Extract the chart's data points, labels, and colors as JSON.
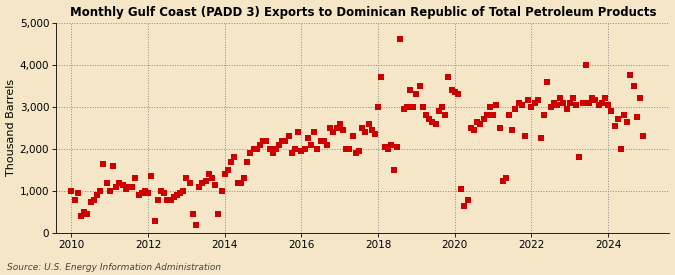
{
  "title": "Monthly Gulf Coast (PADD 3) Exports to Dominican Republic of Total Petroleum Products",
  "ylabel": "Thousand Barrels",
  "source": "Source: U.S. Energy Information Administration",
  "background_color": "#f5e6c8",
  "plot_bg_color": "#f5e6c8",
  "marker_color": "#cc0000",
  "marker": "s",
  "marker_size": 4,
  "ylim": [
    0,
    5000
  ],
  "yticks": [
    0,
    1000,
    2000,
    3000,
    4000,
    5000
  ],
  "ytick_labels": [
    "0",
    "1,000",
    "2,000",
    "3,000",
    "4,000",
    "5,000"
  ],
  "xlim_start": 2009.6,
  "xlim_end": 2025.6,
  "xticks": [
    2010,
    2012,
    2014,
    2016,
    2018,
    2020,
    2022,
    2024
  ],
  "data": [
    [
      2010.0,
      1000
    ],
    [
      2010.083,
      800
    ],
    [
      2010.167,
      950
    ],
    [
      2010.25,
      420
    ],
    [
      2010.333,
      500
    ],
    [
      2010.417,
      450
    ],
    [
      2010.5,
      750
    ],
    [
      2010.583,
      800
    ],
    [
      2010.667,
      900
    ],
    [
      2010.75,
      1000
    ],
    [
      2010.833,
      1650
    ],
    [
      2010.917,
      1200
    ],
    [
      2011.0,
      1000
    ],
    [
      2011.083,
      1600
    ],
    [
      2011.167,
      1100
    ],
    [
      2011.25,
      1200
    ],
    [
      2011.333,
      1150
    ],
    [
      2011.417,
      1050
    ],
    [
      2011.5,
      1100
    ],
    [
      2011.583,
      1100
    ],
    [
      2011.667,
      1300
    ],
    [
      2011.75,
      900
    ],
    [
      2011.833,
      950
    ],
    [
      2011.917,
      1000
    ],
    [
      2012.0,
      950
    ],
    [
      2012.083,
      1350
    ],
    [
      2012.167,
      300
    ],
    [
      2012.25,
      800
    ],
    [
      2012.333,
      1000
    ],
    [
      2012.417,
      950
    ],
    [
      2012.5,
      800
    ],
    [
      2012.583,
      800
    ],
    [
      2012.667,
      850
    ],
    [
      2012.75,
      900
    ],
    [
      2012.833,
      950
    ],
    [
      2012.917,
      1000
    ],
    [
      2013.0,
      1300
    ],
    [
      2013.083,
      1200
    ],
    [
      2013.167,
      450
    ],
    [
      2013.25,
      200
    ],
    [
      2013.333,
      1100
    ],
    [
      2013.417,
      1200
    ],
    [
      2013.5,
      1250
    ],
    [
      2013.583,
      1400
    ],
    [
      2013.667,
      1300
    ],
    [
      2013.75,
      1150
    ],
    [
      2013.833,
      450
    ],
    [
      2013.917,
      1000
    ],
    [
      2014.0,
      1400
    ],
    [
      2014.083,
      1500
    ],
    [
      2014.167,
      1700
    ],
    [
      2014.25,
      1800
    ],
    [
      2014.333,
      1200
    ],
    [
      2014.417,
      1200
    ],
    [
      2014.5,
      1300
    ],
    [
      2014.583,
      1700
    ],
    [
      2014.667,
      1900
    ],
    [
      2014.75,
      2000
    ],
    [
      2014.833,
      2000
    ],
    [
      2014.917,
      2100
    ],
    [
      2015.0,
      2200
    ],
    [
      2015.083,
      2200
    ],
    [
      2015.167,
      2000
    ],
    [
      2015.25,
      1900
    ],
    [
      2015.333,
      2000
    ],
    [
      2015.417,
      2100
    ],
    [
      2015.5,
      2200
    ],
    [
      2015.583,
      2200
    ],
    [
      2015.667,
      2300
    ],
    [
      2015.75,
      1900
    ],
    [
      2015.833,
      2000
    ],
    [
      2015.917,
      2400
    ],
    [
      2016.0,
      1950
    ],
    [
      2016.083,
      2000
    ],
    [
      2016.167,
      2250
    ],
    [
      2016.25,
      2100
    ],
    [
      2016.333,
      2400
    ],
    [
      2016.417,
      2000
    ],
    [
      2016.5,
      2200
    ],
    [
      2016.583,
      2200
    ],
    [
      2016.667,
      2100
    ],
    [
      2016.75,
      2500
    ],
    [
      2016.833,
      2400
    ],
    [
      2016.917,
      2500
    ],
    [
      2017.0,
      2600
    ],
    [
      2017.083,
      2450
    ],
    [
      2017.167,
      2000
    ],
    [
      2017.25,
      2000
    ],
    [
      2017.333,
      2300
    ],
    [
      2017.417,
      1900
    ],
    [
      2017.5,
      1950
    ],
    [
      2017.583,
      2500
    ],
    [
      2017.667,
      2400
    ],
    [
      2017.75,
      2600
    ],
    [
      2017.833,
      2450
    ],
    [
      2017.917,
      2350
    ],
    [
      2018.0,
      3000
    ],
    [
      2018.083,
      3700
    ],
    [
      2018.167,
      2050
    ],
    [
      2018.25,
      2000
    ],
    [
      2018.333,
      2100
    ],
    [
      2018.417,
      1500
    ],
    [
      2018.5,
      2050
    ],
    [
      2018.583,
      4600
    ],
    [
      2018.667,
      2950
    ],
    [
      2018.75,
      3000
    ],
    [
      2018.833,
      3400
    ],
    [
      2018.917,
      3000
    ],
    [
      2019.0,
      3300
    ],
    [
      2019.083,
      3500
    ],
    [
      2019.167,
      3000
    ],
    [
      2019.25,
      2800
    ],
    [
      2019.333,
      2700
    ],
    [
      2019.417,
      2650
    ],
    [
      2019.5,
      2600
    ],
    [
      2019.583,
      2900
    ],
    [
      2019.667,
      3000
    ],
    [
      2019.75,
      2800
    ],
    [
      2019.833,
      3700
    ],
    [
      2019.917,
      3400
    ],
    [
      2020.0,
      3350
    ],
    [
      2020.083,
      3300
    ],
    [
      2020.167,
      1050
    ],
    [
      2020.25,
      650
    ],
    [
      2020.333,
      800
    ],
    [
      2020.417,
      2500
    ],
    [
      2020.5,
      2450
    ],
    [
      2020.583,
      2650
    ],
    [
      2020.667,
      2600
    ],
    [
      2020.75,
      2700
    ],
    [
      2020.833,
      2800
    ],
    [
      2020.917,
      3000
    ],
    [
      2021.0,
      2800
    ],
    [
      2021.083,
      3050
    ],
    [
      2021.167,
      2500
    ],
    [
      2021.25,
      1250
    ],
    [
      2021.333,
      1300
    ],
    [
      2021.417,
      2800
    ],
    [
      2021.5,
      2450
    ],
    [
      2021.583,
      2950
    ],
    [
      2021.667,
      3100
    ],
    [
      2021.75,
      3050
    ],
    [
      2021.833,
      2300
    ],
    [
      2021.917,
      3150
    ],
    [
      2022.0,
      3000
    ],
    [
      2022.083,
      3100
    ],
    [
      2022.167,
      3150
    ],
    [
      2022.25,
      2250
    ],
    [
      2022.333,
      2800
    ],
    [
      2022.417,
      3600
    ],
    [
      2022.5,
      3000
    ],
    [
      2022.583,
      3100
    ],
    [
      2022.667,
      3050
    ],
    [
      2022.75,
      3200
    ],
    [
      2022.833,
      3100
    ],
    [
      2022.917,
      2950
    ],
    [
      2023.0,
      3100
    ],
    [
      2023.083,
      3200
    ],
    [
      2023.167,
      3050
    ],
    [
      2023.25,
      1800
    ],
    [
      2023.333,
      3100
    ],
    [
      2023.417,
      4000
    ],
    [
      2023.5,
      3100
    ],
    [
      2023.583,
      3200
    ],
    [
      2023.667,
      3150
    ],
    [
      2023.75,
      3050
    ],
    [
      2023.833,
      3100
    ],
    [
      2023.917,
      3200
    ],
    [
      2024.0,
      3050
    ],
    [
      2024.083,
      2900
    ],
    [
      2024.167,
      2550
    ],
    [
      2024.25,
      2700
    ],
    [
      2024.333,
      2000
    ],
    [
      2024.417,
      2800
    ],
    [
      2024.5,
      2650
    ],
    [
      2024.583,
      3750
    ],
    [
      2024.667,
      3500
    ],
    [
      2024.75,
      2750
    ],
    [
      2024.833,
      3200
    ],
    [
      2024.917,
      2300
    ]
  ]
}
